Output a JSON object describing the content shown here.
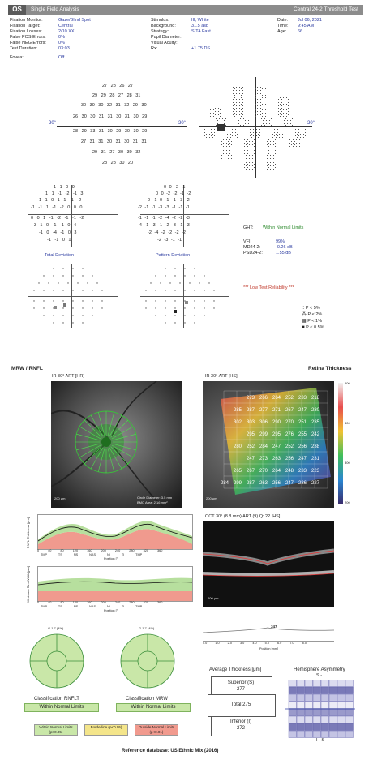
{
  "header": {
    "eye": "OS",
    "analysis": "Single Field Analysis",
    "test": "Central 24-2 Threshold Test"
  },
  "info_left": [
    {
      "k": "Fixation Monitor:",
      "v": "Gaze/Blind Spot"
    },
    {
      "k": "Fixation Target:",
      "v": "Central"
    },
    {
      "k": "Fixation Losses:",
      "v": "2/10 XX"
    },
    {
      "k": "False POS Errors:",
      "v": "0%"
    },
    {
      "k": "False NEG Errors:",
      "v": "0%"
    },
    {
      "k": "Test Duration:",
      "v": "03:03"
    },
    {
      "k": "Fovea:",
      "v": "Off"
    }
  ],
  "info_mid": [
    {
      "k": "Stimulus:",
      "v": "III, White"
    },
    {
      "k": "Background:",
      "v": "31.5 asb"
    },
    {
      "k": "Strategy:",
      "v": "SITA Fast"
    },
    {
      "k": "Pupil Diameter:",
      "v": ""
    },
    {
      "k": "Visual Acuity:",
      "v": ""
    },
    {
      "k": "Rx:",
      "v": "+1.75 DS"
    }
  ],
  "info_right": [
    {
      "k": "Date:",
      "v": "Jul 06, 2021"
    },
    {
      "k": "Time:",
      "v": "9:45 AM"
    },
    {
      "k": "Age:",
      "v": "66"
    }
  ],
  "axis_label": "30°",
  "threshold_rows": [
    "27 28 26 27",
    "29 29 28 27 28 31",
    "30 30 30 32 31 32 29 30",
    "26 30 30 31 31 30 31 30 29",
    "28 29 33 31 30 29 30 30 29",
    "27 31 31 30 31 30 31 31",
    "29 31 27 30 30 32",
    "28 28 30 20"
  ],
  "total_dev_rows": [
    "1 1 0 0",
    "1 1 -1 -2 -1 3",
    "1 1 0 1 1 -1 -2",
    "-1 -1 1 -1 -2 0 0 0",
    "0 0 1 -1 -2 -1 -1 -2",
    "-3 1 0 -1 -1 0 4",
    "-1 0 -4 -1 0 3",
    "-1 -1 0 1"
  ],
  "pattern_dev_rows": [
    "0 0 -2 -1",
    "0 0 -2 -2 -1 -2",
    "0 -1 0 -1 -1 -3 -2",
    "-2 -1 -1 -3 -3 -1 -1 -1",
    "-1 -1 -1 -2 -4 -2 -2 -3",
    "-4 -1 -3 -1 -2 -3 -1 -3",
    "-2 -4 -2 -2 -2 -2",
    "-2 -3 -1 -1"
  ],
  "total_deviation_label": "Total Deviation",
  "pattern_deviation_label": "Pattern Deviation",
  "ght": {
    "k": "GHT:",
    "v": "Within Normal Limits"
  },
  "indices": [
    {
      "k": "VFI:",
      "v": "99%"
    },
    {
      "k": "MD24-2:",
      "v": "-0.26 dB"
    },
    {
      "k": "PSD24-2:",
      "v": "1.55 dB"
    }
  ],
  "reliability": "*** Low Test Reliability ***",
  "prob_legend": [
    "P < 5%",
    "P < 2%",
    "P < 1%",
    "P < 0.5%"
  ],
  "mrw_title": "MRW / RNFL",
  "retina_title": "Retina Thickness",
  "ir_left_label": "IR 30° ART [HR]",
  "ir_right_label": "IR 30° ART [HS]",
  "scale_200": "200 μm",
  "circle_diam": "Circle Diameter: 3.5 mm",
  "bmo_area": "BMO Area: 2.16 mm²",
  "oct_label": "OCT 30° (8.8 mm) ART (9) Q: 22 [HS]",
  "thickness_grid": [
    [
      273,
      266,
      264,
      252,
      233,
      218
    ],
    [
      285,
      287,
      277,
      271,
      267,
      247,
      230
    ],
    [
      302,
      303,
      306,
      290,
      270,
      251,
      235
    ],
    [
      295,
      299,
      295,
      276,
      255,
      242
    ],
    [
      280,
      252,
      284,
      247,
      252,
      256,
      238
    ],
    [
      247,
      273,
      263,
      256,
      247,
      231
    ],
    [
      265,
      267,
      270,
      264,
      248,
      233,
      223
    ],
    [
      284,
      299,
      287,
      263,
      256,
      247,
      236,
      227
    ]
  ],
  "thick_scale": [
    "500",
    "400",
    "300",
    "200"
  ],
  "rnfl_axis": [
    "0",
    "40",
    "80",
    "120",
    "160",
    "200",
    "240",
    "280",
    "320",
    "360"
  ],
  "sector_labels": [
    "TMP",
    "TS",
    "NS",
    "NAS",
    "NI",
    "TI",
    "TMP"
  ],
  "position_label": "Position [°]",
  "rnfl_ylabel": "RNFL Thickness [μm]",
  "mrw_ylabel": "Minimum Rim Width [μm]",
  "profile_value": "347",
  "profile_axis": [
    "0.0",
    "1.0",
    "2.0",
    "3.0",
    "4.0",
    "5.0",
    "6.0",
    "7.0",
    "8.0"
  ],
  "position_mm": "Position [mm]",
  "pie_left_title": "G 1.7 (4%)",
  "pie_right_title": "G 1.7 (4%)",
  "class_rnfl": "Classification RNFLT",
  "class_mrw": "Classification MRW",
  "within_normal": "Within Normal Limits",
  "status_legend": [
    {
      "label": "Within Normal Limits (p>0.05)",
      "color": "#c9e7a8"
    },
    {
      "label": "Borderline (p<0.05)",
      "color": "#f4e58a"
    },
    {
      "label": "Outside Normal Limits (p<0.01)",
      "color": "#f19a8e"
    }
  ],
  "avg_thick_title": "Average Thickness [μm]",
  "superior": {
    "label": "Superior (S)",
    "value": "277"
  },
  "total": {
    "label": "Total",
    "value": "275"
  },
  "inferior": {
    "label": "Inferior (I)",
    "value": "272"
  },
  "hemi_title": "Hemisphere Asymmetry",
  "hemi_top": "S - I",
  "hemi_bottom": "I - S",
  "reference": "Reference database: US Ethnic Mix (2016)"
}
